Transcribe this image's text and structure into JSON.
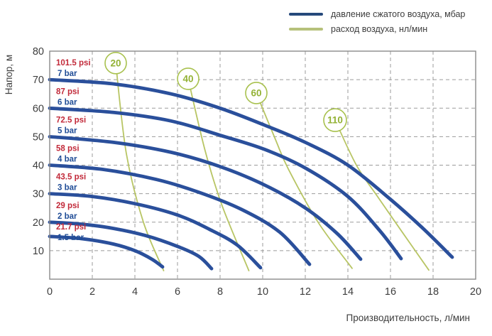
{
  "legend": {
    "items": [
      {
        "id": "pressure",
        "label": "давление сжатого воздуха, мбар",
        "color": "#26497b"
      },
      {
        "id": "flow",
        "label": "расход воздуха, нл/мин",
        "color": "#b6c17b"
      }
    ]
  },
  "chart_data": {
    "type": "line",
    "title": "",
    "xlabel": "Производительность, л/мин",
    "ylabel": "Напор, м",
    "xlim": [
      0,
      20
    ],
    "ylim": [
      0,
      80
    ],
    "xticks": [
      0,
      2,
      4,
      6,
      8,
      10,
      12,
      14,
      16,
      18,
      20
    ],
    "yticks": [
      10,
      20,
      30,
      40,
      50,
      60,
      70,
      80
    ],
    "grid": true,
    "legend_position": "top-right",
    "series_pressure": [
      {
        "psi": "101.5 psi",
        "bar": "7 bar",
        "points": [
          [
            0,
            70
          ],
          [
            3,
            68.5
          ],
          [
            5.7,
            65
          ],
          [
            8,
            60
          ],
          [
            10.1,
            54
          ],
          [
            12,
            48
          ],
          [
            14,
            40
          ],
          [
            16,
            28
          ],
          [
            17.5,
            18
          ],
          [
            18.9,
            7.7
          ]
        ]
      },
      {
        "psi": "87 psi",
        "bar": "6 bar",
        "points": [
          [
            0,
            60
          ],
          [
            3,
            58.5
          ],
          [
            5.7,
            55.5
          ],
          [
            8,
            50.5
          ],
          [
            10.1,
            45.5
          ],
          [
            12,
            39
          ],
          [
            14,
            29
          ],
          [
            15.5,
            17
          ],
          [
            16.5,
            7.2
          ]
        ]
      },
      {
        "psi": "72.5 psi",
        "bar": "5 bar",
        "points": [
          [
            0,
            50
          ],
          [
            3,
            48
          ],
          [
            5.7,
            44.5
          ],
          [
            8,
            39.5
          ],
          [
            10.1,
            33
          ],
          [
            12,
            25
          ],
          [
            13.5,
            16
          ],
          [
            14.6,
            7
          ]
        ]
      },
      {
        "psi": "58 psi",
        "bar": "4 bar",
        "points": [
          [
            0,
            40
          ],
          [
            2.5,
            38.5
          ],
          [
            5,
            35
          ],
          [
            7,
            30.5
          ],
          [
            9,
            24.5
          ],
          [
            10.8,
            16.5
          ],
          [
            12.2,
            5.2
          ]
        ]
      },
      {
        "psi": "43.5 psi",
        "bar": "3 bar",
        "points": [
          [
            0,
            30
          ],
          [
            2,
            29
          ],
          [
            4,
            26.5
          ],
          [
            6,
            22.5
          ],
          [
            7.5,
            17.5
          ],
          [
            8.8,
            12
          ],
          [
            9.9,
            4
          ]
        ]
      },
      {
        "psi": "29 psi",
        "bar": "2 bar",
        "points": [
          [
            0,
            20
          ],
          [
            1.5,
            19.3
          ],
          [
            3,
            17.8
          ],
          [
            4.5,
            15.3
          ],
          [
            6,
            11.5
          ],
          [
            7,
            8
          ],
          [
            7.6,
            3.7
          ]
        ]
      },
      {
        "psi": "21.7 psi",
        "bar": "1.5 bar",
        "label_dy": 10,
        "points": [
          [
            0,
            15
          ],
          [
            1.5,
            14.2
          ],
          [
            3,
            12.3
          ],
          [
            4,
            10
          ],
          [
            4.8,
            7
          ],
          [
            5.3,
            4.3
          ]
        ]
      }
    ],
    "series_flow": [
      {
        "value": "20",
        "circle": [
          3.1,
          75.8
        ],
        "r": 15,
        "points": [
          [
            3.1,
            75.8
          ],
          [
            3.6,
            44
          ],
          [
            4.4,
            20
          ],
          [
            5.35,
            3
          ]
        ]
      },
      {
        "value": "40",
        "circle": [
          6.5,
          70.3
        ],
        "r": 15,
        "points": [
          [
            6.5,
            70.3
          ],
          [
            7.3,
            45
          ],
          [
            8.1,
            25.7
          ],
          [
            9.35,
            3
          ]
        ]
      },
      {
        "value": "60",
        "circle": [
          9.7,
          65.3
        ],
        "r": 15,
        "points": [
          [
            9.7,
            65.3
          ],
          [
            10.6,
            49
          ],
          [
            11.2,
            38.7
          ],
          [
            12.6,
            20
          ],
          [
            14.2,
            3.8
          ]
        ]
      },
      {
        "value": "110",
        "circle": [
          13.4,
          55.8
        ],
        "r": 16,
        "points": [
          [
            13.4,
            55.8
          ],
          [
            14.4,
            40
          ],
          [
            15.4,
            28.9
          ],
          [
            16.6,
            16
          ],
          [
            17.8,
            3.2
          ]
        ]
      }
    ]
  },
  "colors": {
    "pressure_curve": "#2a4f9b",
    "flow_curve": "#b8c564",
    "circle_stroke": "#a8c14e",
    "circle_text": "#93b235",
    "psi_text": "#c22a3a",
    "bar_text": "#1f4c96",
    "grid": "#9b9b9b",
    "border": "#8a8a8a",
    "axis_text": "#3d3d3d"
  }
}
